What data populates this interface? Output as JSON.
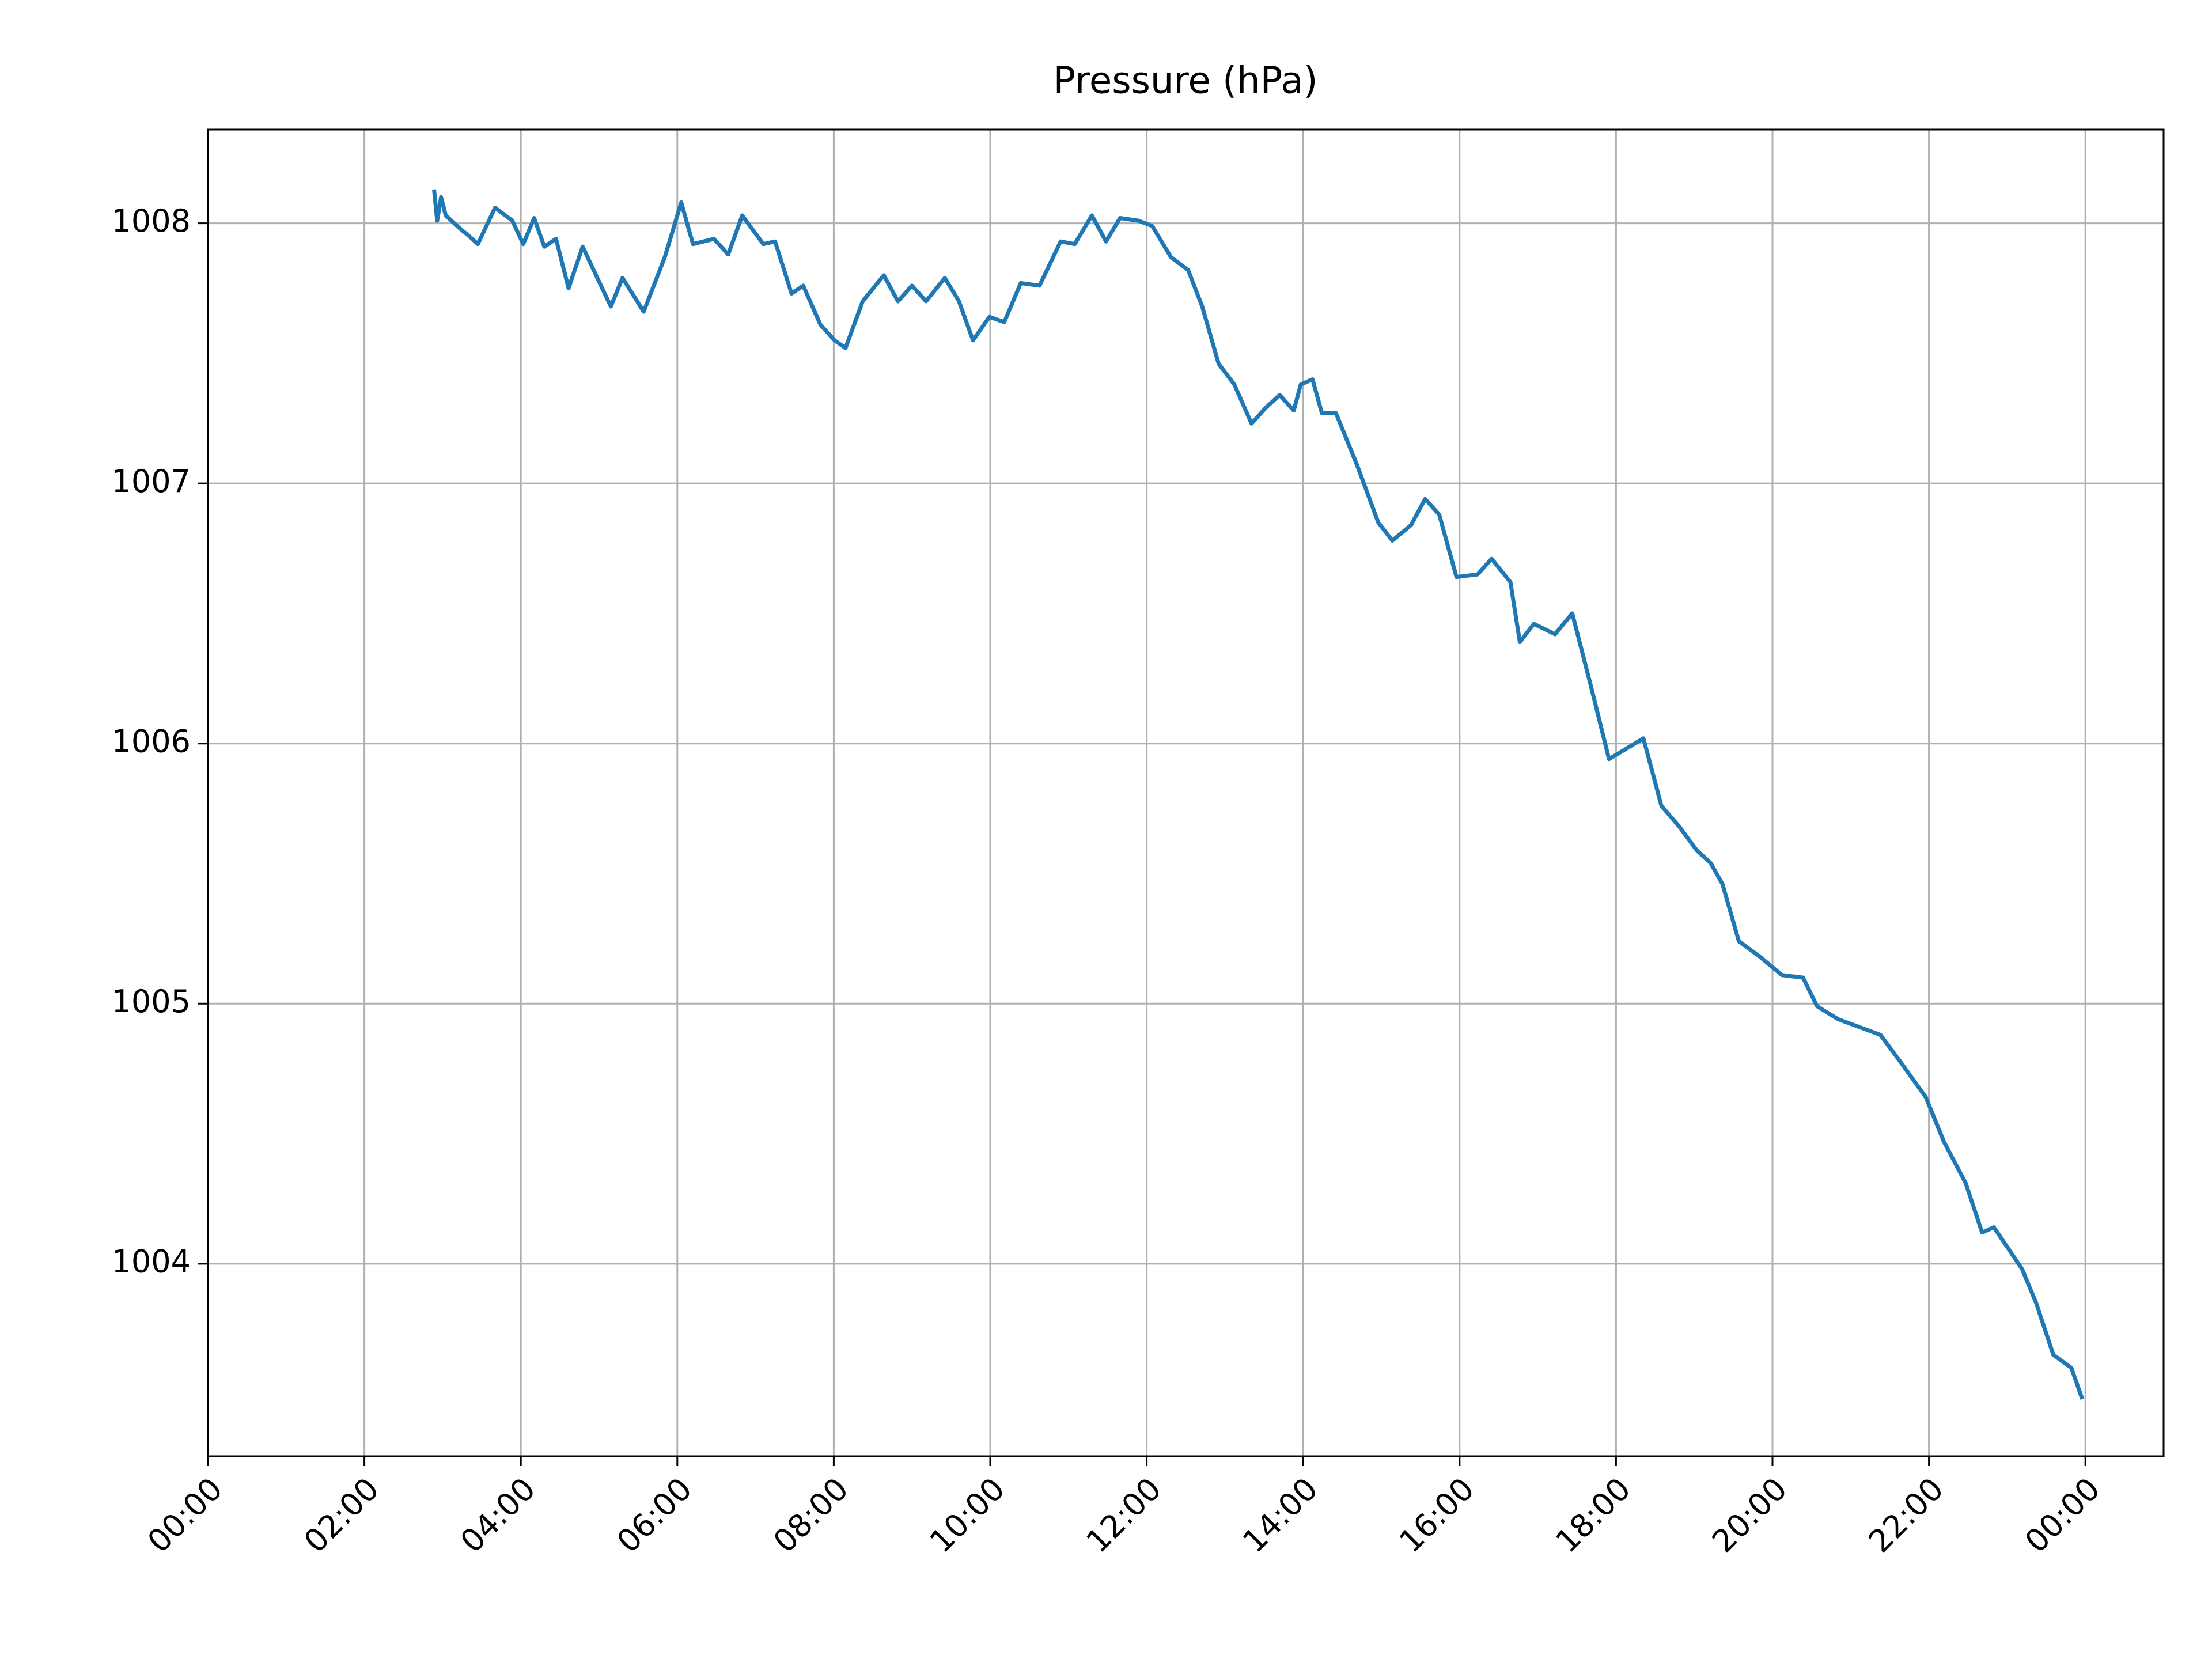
{
  "chart_data": {
    "type": "line",
    "title": "Pressure (hPa)",
    "x": [
      2.89,
      2.93,
      2.98,
      3.04,
      3.22,
      3.34,
      3.45,
      3.67,
      3.89,
      4.03,
      4.17,
      4.3,
      4.45,
      4.61,
      4.79,
      4.93,
      5.15,
      5.3,
      5.57,
      5.84,
      6.05,
      6.2,
      6.47,
      6.65,
      6.83,
      7.1,
      7.25,
      7.46,
      7.61,
      7.83,
      8.01,
      8.15,
      8.37,
      8.64,
      8.82,
      9.0,
      9.18,
      9.42,
      9.6,
      9.78,
      9.99,
      10.18,
      10.39,
      10.63,
      10.9,
      11.08,
      11.3,
      11.48,
      11.66,
      11.89,
      12.07,
      12.31,
      12.53,
      12.71,
      12.92,
      13.12,
      13.34,
      13.52,
      13.7,
      13.88,
      13.97,
      14.12,
      14.24,
      14.42,
      14.69,
      14.96,
      15.14,
      15.38,
      15.56,
      15.74,
      15.96,
      16.23,
      16.41,
      16.65,
      16.77,
      16.95,
      17.22,
      17.44,
      17.68,
      17.91,
      18.13,
      18.35,
      18.58,
      18.81,
      19.03,
      19.21,
      19.36,
      19.57,
      19.84,
      20.12,
      20.39,
      20.57,
      20.84,
      21.11,
      21.38,
      21.65,
      21.96,
      22.19,
      22.47,
      22.68,
      22.83,
      23.01,
      23.19,
      23.37,
      23.59,
      23.82,
      23.96
    ],
    "series": [
      {
        "name": "Pressure",
        "color": "#1f77b4",
        "values": [
          1008.13,
          1008.01,
          1008.1,
          1008.03,
          1007.98,
          1007.95,
          1007.92,
          1008.06,
          1008.01,
          1007.92,
          1008.02,
          1007.91,
          1007.94,
          1007.75,
          1007.91,
          1007.82,
          1007.68,
          1007.79,
          1007.66,
          1007.87,
          1008.08,
          1007.92,
          1007.94,
          1007.88,
          1008.03,
          1007.92,
          1007.93,
          1007.73,
          1007.76,
          1007.61,
          1007.55,
          1007.52,
          1007.7,
          1007.8,
          1007.7,
          1007.76,
          1007.7,
          1007.79,
          1007.7,
          1007.55,
          1007.64,
          1007.62,
          1007.77,
          1007.76,
          1007.93,
          1007.92,
          1008.03,
          1007.93,
          1008.02,
          1008.01,
          1007.99,
          1007.87,
          1007.82,
          1007.68,
          1007.46,
          1007.38,
          1007.23,
          1007.29,
          1007.34,
          1007.28,
          1007.38,
          1007.4,
          1007.27,
          1007.27,
          1007.07,
          1006.85,
          1006.78,
          1006.84,
          1006.94,
          1006.88,
          1006.64,
          1006.65,
          1006.71,
          1006.62,
          1006.39,
          1006.46,
          1006.42,
          1006.5,
          1006.22,
          1005.94,
          1005.98,
          1006.02,
          1005.76,
          1005.68,
          1005.59,
          1005.54,
          1005.46,
          1005.24,
          1005.18,
          1005.11,
          1005.1,
          1004.99,
          1004.94,
          1004.91,
          1004.88,
          1004.77,
          1004.64,
          1004.47,
          1004.31,
          1004.12,
          1004.14,
          1004.06,
          1003.98,
          1003.85,
          1003.65,
          1003.6,
          1003.48
        ]
      }
    ],
    "xlim": [
      0,
      25
    ],
    "xticks": [
      {
        "value": 0,
        "label": "00:00"
      },
      {
        "value": 2,
        "label": "02:00"
      },
      {
        "value": 4,
        "label": "04:00"
      },
      {
        "value": 6,
        "label": "06:00"
      },
      {
        "value": 8,
        "label": "08:00"
      },
      {
        "value": 10,
        "label": "10:00"
      },
      {
        "value": 12,
        "label": "12:00"
      },
      {
        "value": 14,
        "label": "14:00"
      },
      {
        "value": 16,
        "label": "16:00"
      },
      {
        "value": 18,
        "label": "18:00"
      },
      {
        "value": 20,
        "label": "20:00"
      },
      {
        "value": 22,
        "label": "22:00"
      },
      {
        "value": 24,
        "label": "00:00"
      }
    ],
    "ylim": [
      1003.26,
      1008.36
    ],
    "yticks": [
      1004,
      1005,
      1006,
      1007,
      1008
    ],
    "grid": true
  }
}
